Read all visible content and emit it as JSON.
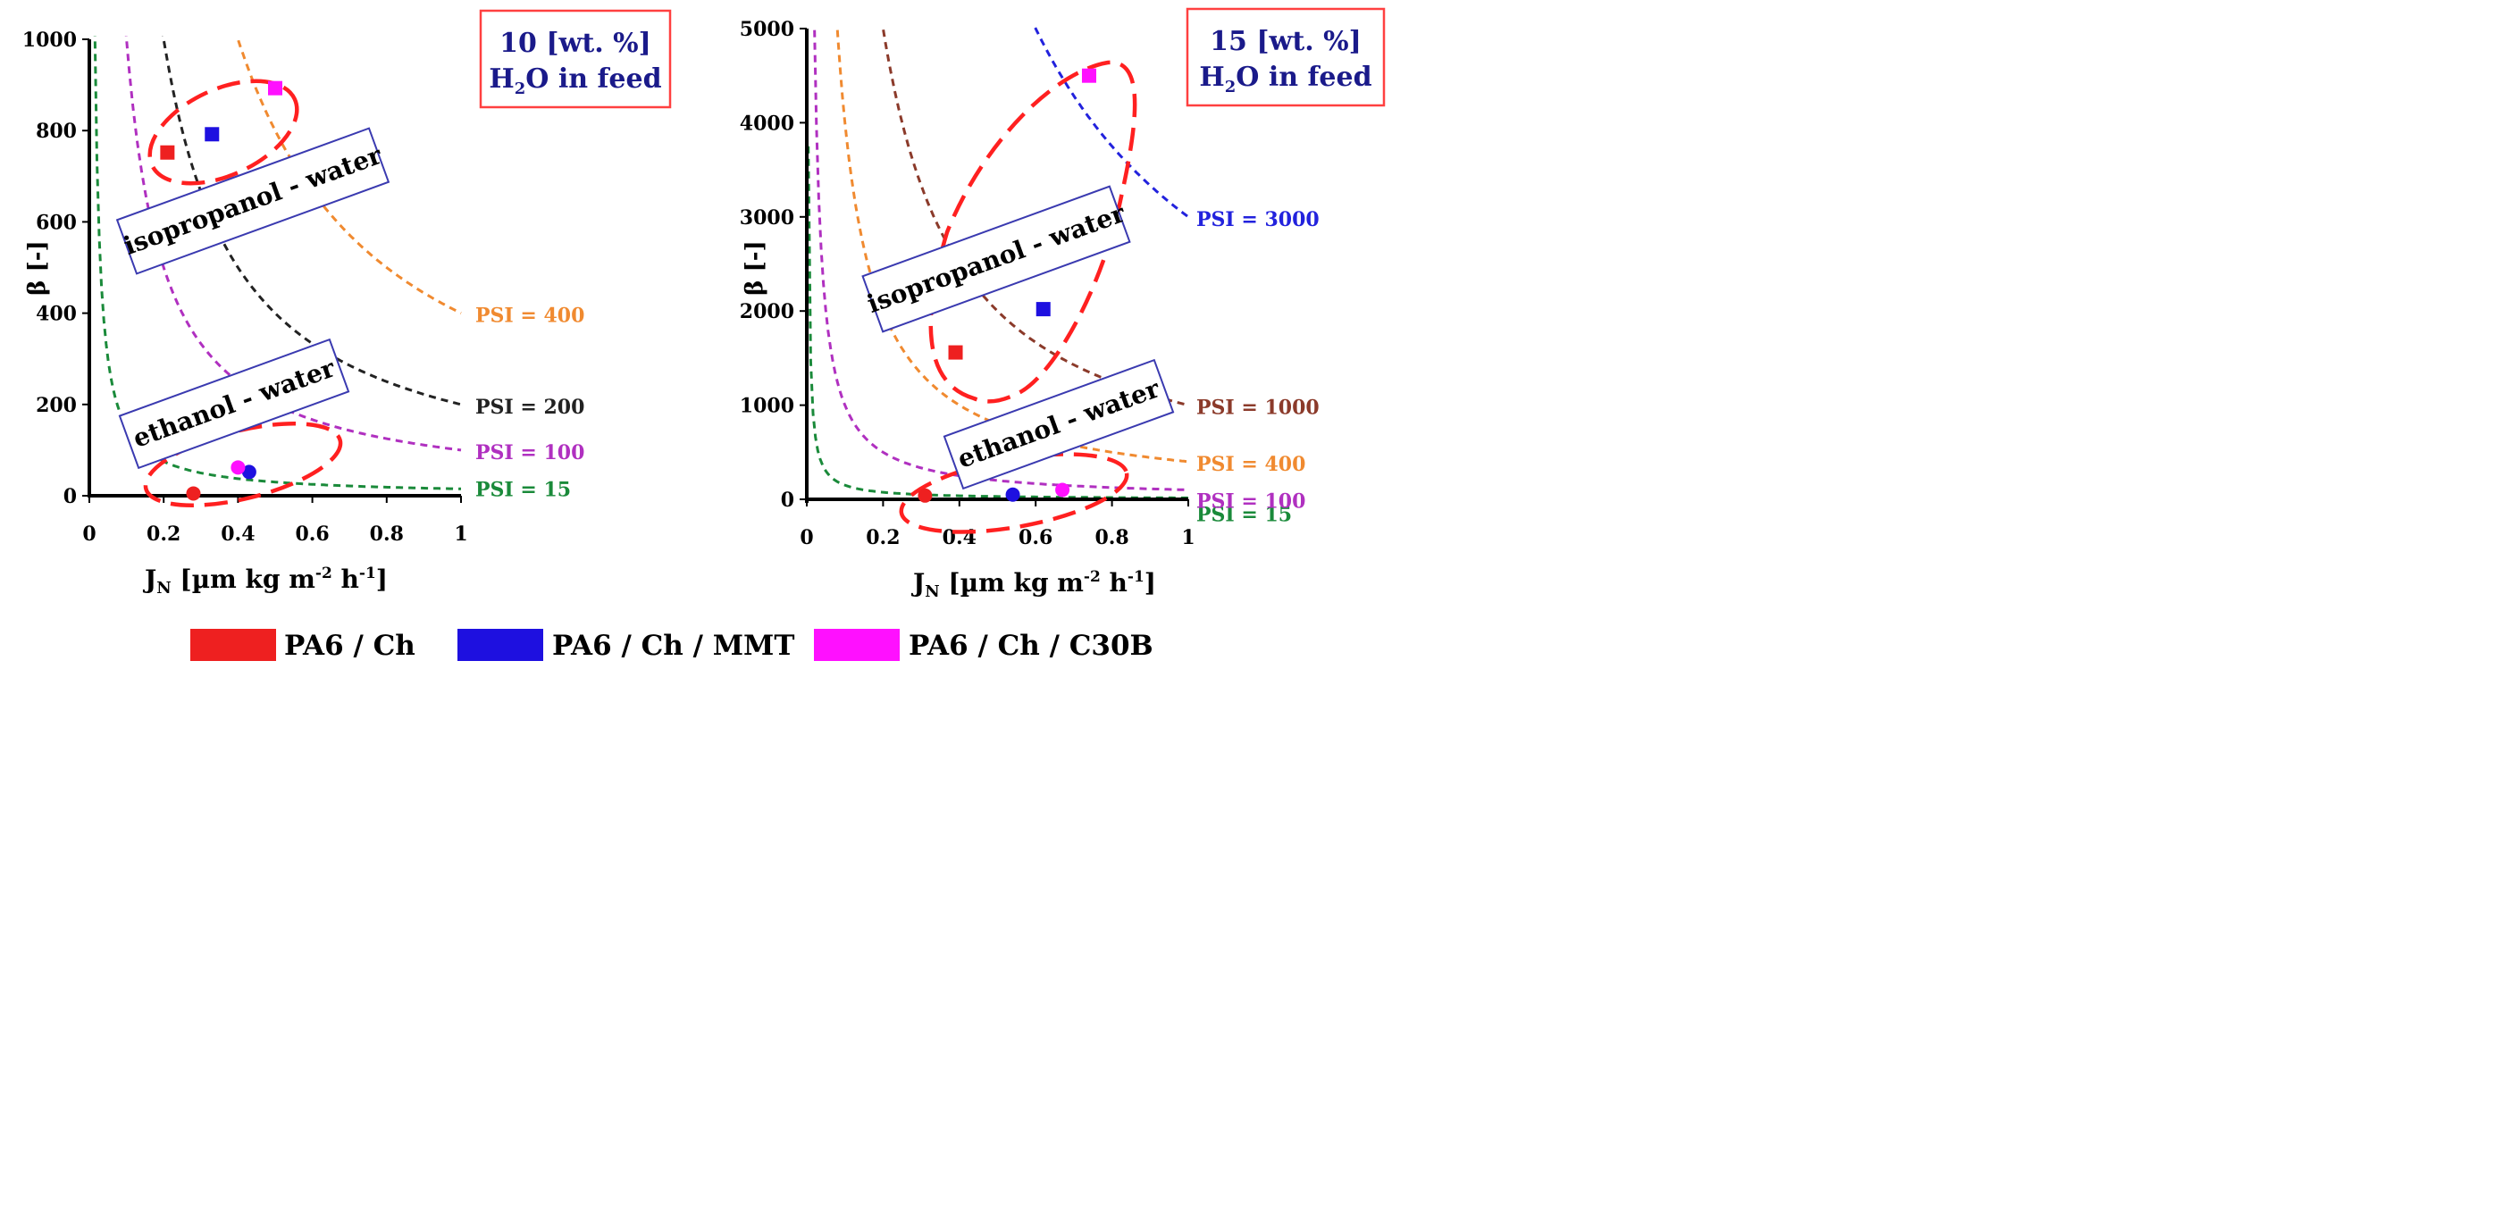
{
  "chart_data": [
    {
      "type": "scatter",
      "panel": "left",
      "title_box": {
        "line1": "10 [wt. %]",
        "line2_prefix": "H",
        "line2_sub": "2",
        "line2_suffix": "O in feed"
      },
      "xlabel": {
        "prefix": "J",
        "sub": "N",
        "main": " [µm kg m",
        "sup1": "-2",
        "mid": " h",
        "sup2": "-1",
        "end": "]"
      },
      "ylabel": "β [-]",
      "xlim": [
        0,
        1
      ],
      "ylim": [
        0,
        1000
      ],
      "xticks": [
        0,
        0.2,
        0.4,
        0.6,
        0.8,
        1
      ],
      "xtick_labels": [
        "0",
        "0.2",
        "0.4",
        "0.6",
        "0.8",
        "1"
      ],
      "yticks": [
        0,
        200,
        400,
        600,
        800,
        1000
      ],
      "ytick_labels": [
        "0",
        "200",
        "400",
        "600",
        "800",
        "1000"
      ],
      "psi_curves": [
        {
          "psi": 15,
          "label": "PSI = 15",
          "color": "#1a8a3a",
          "y_at_1": 15
        },
        {
          "psi": 100,
          "label": "PSI = 100",
          "color": "#b030c0",
          "y_at_1": 100
        },
        {
          "psi": 200,
          "label": "PSI = 200",
          "color": "#222222",
          "y_at_1": 200
        },
        {
          "psi": 400,
          "label": "PSI = 400",
          "color": "#f08a30",
          "y_at_1": 400
        }
      ],
      "points": [
        {
          "series": "PA6 / Ch",
          "group": "isopropanol",
          "x": 0.21,
          "y": 752,
          "shape": "square",
          "color": "#ee2020"
        },
        {
          "series": "PA6 / Ch / MMT",
          "group": "isopropanol",
          "x": 0.33,
          "y": 792,
          "shape": "square",
          "color": "#1e10e0"
        },
        {
          "series": "PA6 / Ch / C30B",
          "group": "isopropanol",
          "x": 0.5,
          "y": 893,
          "shape": "square",
          "color": "#ff10ff"
        },
        {
          "series": "PA6 / Ch",
          "group": "ethanol",
          "x": 0.28,
          "y": 5,
          "shape": "circle",
          "color": "#ee2020"
        },
        {
          "series": "PA6 / Ch / MMT",
          "group": "ethanol",
          "x": 0.43,
          "y": 52,
          "shape": "circle",
          "color": "#1e10e0"
        },
        {
          "series": "PA6 / Ch / C30B",
          "group": "ethanol",
          "x": 0.4,
          "y": 62,
          "shape": "circle",
          "color": "#ff10ff"
        }
      ],
      "group_labels": {
        "isopropanol": "isopropanol - water",
        "ethanol": "ethanol - water"
      }
    },
    {
      "type": "scatter",
      "panel": "right",
      "title_box": {
        "line1": "15 [wt. %]",
        "line2_prefix": "H",
        "line2_sub": "2",
        "line2_suffix": "O in feed"
      },
      "xlabel": {
        "prefix": "J",
        "sub": "N",
        "main": " [µm kg m",
        "sup1": "-2",
        "mid": " h",
        "sup2": "-1",
        "end": "]"
      },
      "ylabel": "β [-]",
      "xlim": [
        0,
        1
      ],
      "ylim": [
        0,
        5000
      ],
      "xticks": [
        0,
        0.2,
        0.4,
        0.6,
        0.8,
        1
      ],
      "xtick_labels": [
        "0",
        "0.2",
        "0.4",
        "0.6",
        "0.8",
        "1"
      ],
      "yticks": [
        0,
        1000,
        2000,
        3000,
        4000,
        5000
      ],
      "ytick_labels": [
        "0",
        "1000",
        "2000",
        "3000",
        "4000",
        "5000"
      ],
      "psi_curves": [
        {
          "psi": 15,
          "label": "PSI = 15",
          "color": "#1a8a3a",
          "y_at_1": 15
        },
        {
          "psi": 100,
          "label": "PSI = 100",
          "color": "#b030c0",
          "y_at_1": 100
        },
        {
          "psi": 400,
          "label": "PSI = 400",
          "color": "#f08a30",
          "y_at_1": 400
        },
        {
          "psi": 1000,
          "label": "PSI = 1000",
          "color": "#8b3a2a",
          "y_at_1": 1000
        },
        {
          "psi": 3000,
          "label": "PSI = 3000",
          "color": "#2222dd",
          "y_at_1": 3000
        }
      ],
      "points": [
        {
          "series": "PA6 / Ch",
          "group": "isopropanol",
          "x": 0.39,
          "y": 1560,
          "shape": "square",
          "color": "#ee2020"
        },
        {
          "series": "PA6 / Ch / MMT",
          "group": "isopropanol",
          "x": 0.62,
          "y": 2020,
          "shape": "square",
          "color": "#1e10e0"
        },
        {
          "series": "PA6 / Ch / C30B",
          "group": "isopropanol",
          "x": 0.74,
          "y": 4500,
          "shape": "square",
          "color": "#ff10ff"
        },
        {
          "series": "PA6 / Ch",
          "group": "ethanol",
          "x": 0.31,
          "y": 40,
          "shape": "circle",
          "color": "#ee2020"
        },
        {
          "series": "PA6 / Ch / MMT",
          "group": "ethanol",
          "x": 0.54,
          "y": 50,
          "shape": "circle",
          "color": "#1e10e0"
        },
        {
          "series": "PA6 / Ch / C30B",
          "group": "ethanol",
          "x": 0.67,
          "y": 100,
          "shape": "circle",
          "color": "#ff10ff"
        }
      ],
      "group_labels": {
        "isopropanol": "isopropanol - water",
        "ethanol": "ethanol - water"
      }
    }
  ],
  "legend": [
    {
      "label": "PA6 / Ch",
      "color": "#ee2020"
    },
    {
      "label": "PA6 / Ch / MMT",
      "color": "#1e10e0"
    },
    {
      "label": "PA6 / Ch / C30B",
      "color": "#ff10ff"
    }
  ],
  "colors": {
    "highlight": "#ff2020",
    "box_border": "#3a3ab0",
    "title_text": "#1a1a8a",
    "axis": "#000000"
  }
}
